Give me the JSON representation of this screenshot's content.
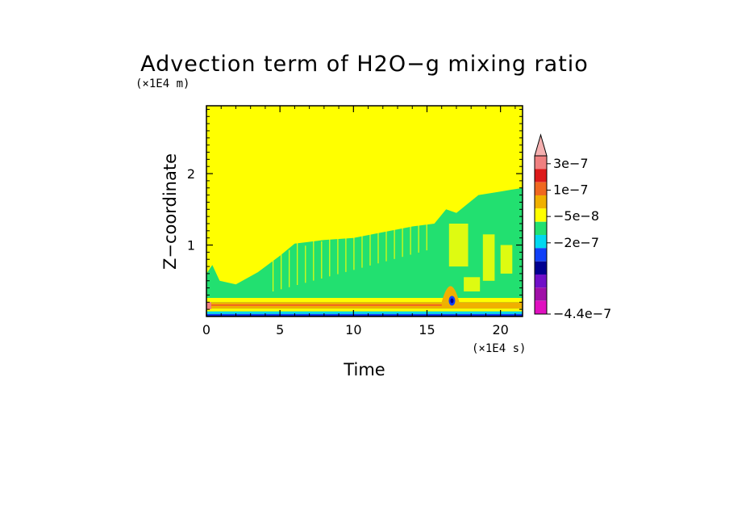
{
  "chart_data": {
    "type": "heatmap",
    "title": "Advection term of H2O−g mixing ratio",
    "xlabel": "Time",
    "ylabel": "Z−coordinate",
    "x_unit": "(×1E4 s)",
    "y_unit": "(×1E4 m)",
    "xlim": [
      0,
      21.5
    ],
    "ylim": [
      0,
      2.95
    ],
    "x_ticks": [
      0,
      5,
      10,
      15,
      20
    ],
    "x_tick_labels": [
      "0",
      "5",
      "10",
      "15",
      "20"
    ],
    "y_ticks": [
      1,
      2
    ],
    "y_tick_labels": [
      "1",
      "2"
    ],
    "colorbar": {
      "levels": [
        "3e−7",
        "1e−7",
        "−5e−8",
        "−2e−7",
        "−4.4e−7"
      ],
      "colors": [
        "#f08080",
        "#dd1a1a",
        "#f06820",
        "#f0b000",
        "#ffff00",
        "#22e070",
        "#00d8f0",
        "#1040f8",
        "#000090",
        "#7010c8",
        "#a010a8",
        "#e010c0"
      ],
      "extend_top_color": "#f5b0b0"
    },
    "regions": [
      {
        "value": "~0 (yellow)",
        "description": "upper domain and background"
      },
      {
        "value": "-5e-8 to 0 (green)",
        "x_range": [
          0,
          21.5
        ],
        "z_top_start": 0.45,
        "z_top_end": 1.8
      },
      {
        "value": "positive (orange/red) band",
        "z_range": [
          0.05,
          0.2
        ]
      },
      {
        "value": "negative (cyan/blue/purple) band",
        "z_range": [
          0,
          0.08
        ]
      },
      {
        "value": "negative blue spot",
        "x": 16.7,
        "z": 0.22
      }
    ]
  },
  "colors": {
    "background": "#ffffff",
    "frame": "#000000"
  }
}
